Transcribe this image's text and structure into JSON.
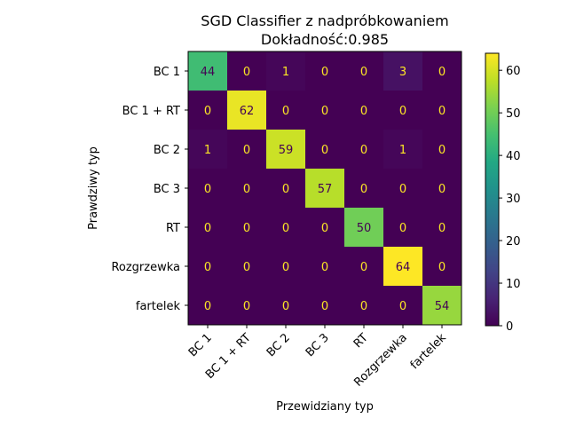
{
  "chart_data": {
    "type": "heatmap",
    "title": "SGD Classifier z nadpróbkowaniem",
    "subtitle": "Dokładność:0.985",
    "xlabel": "Przewidziany typ",
    "ylabel": "Prawdziwy typ",
    "labels": [
      "BC 1",
      "BC 1 + RT",
      "BC 2",
      "BC 3",
      "RT",
      "Rozgrzewka",
      "fartelek"
    ],
    "matrix": [
      [
        44,
        0,
        1,
        0,
        0,
        3,
        0
      ],
      [
        0,
        62,
        0,
        0,
        0,
        0,
        0
      ],
      [
        1,
        0,
        59,
        0,
        0,
        1,
        0
      ],
      [
        0,
        0,
        0,
        57,
        0,
        0,
        0
      ],
      [
        0,
        0,
        0,
        0,
        50,
        0,
        0
      ],
      [
        0,
        0,
        0,
        0,
        0,
        64,
        0
      ],
      [
        0,
        0,
        0,
        0,
        0,
        0,
        54
      ]
    ],
    "colormap": "viridis",
    "vmin": 0,
    "vmax": 64,
    "colorbar_ticks": [
      0,
      10,
      20,
      30,
      40,
      50,
      60
    ],
    "grid": false,
    "colorbar_placement": "right"
  }
}
